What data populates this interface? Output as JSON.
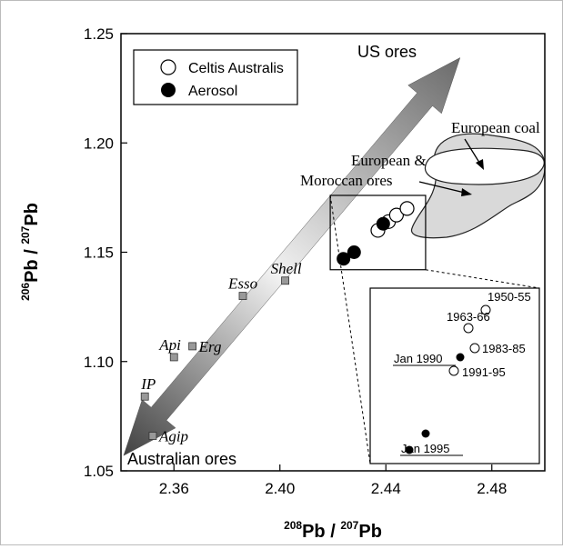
{
  "chart_data": {
    "type": "scatter",
    "xlabel": {
      "sup1": "208",
      "base1": "Pb",
      "sep": " / ",
      "sup2": "207",
      "base2": "Pb"
    },
    "ylabel": {
      "sup1": "206",
      "base1": "Pb",
      "sep": " / ",
      "sup2": "207",
      "base2": "Pb"
    },
    "xlim": [
      2.34,
      2.5
    ],
    "ylim": [
      1.05,
      1.25
    ],
    "xticks": [
      2.36,
      2.4,
      2.44,
      2.48
    ],
    "yticks": [
      1.05,
      1.1,
      1.15,
      1.2,
      1.25
    ],
    "xtick_labels": [
      "2.36",
      "2.40",
      "2.44",
      "2.48"
    ],
    "ytick_labels": [
      "1.05",
      "1.10",
      "1.15",
      "1.20",
      "1.25"
    ],
    "legend": {
      "placement": "top-left",
      "entries": [
        {
          "name": "Celtis Australis",
          "marker": "open-circle"
        },
        {
          "name": "Aerosol",
          "marker": "filled-circle"
        }
      ]
    },
    "series": [
      {
        "name": "Celtis Australis",
        "marker": "open-circle",
        "points": [
          {
            "x": 2.437,
            "y": 1.16
          },
          {
            "x": 2.441,
            "y": 1.164
          },
          {
            "x": 2.444,
            "y": 1.167
          },
          {
            "x": 2.448,
            "y": 1.17
          }
        ]
      },
      {
        "name": "Aerosol",
        "marker": "filled-circle",
        "points": [
          {
            "x": 2.424,
            "y": 1.147
          },
          {
            "x": 2.428,
            "y": 1.15
          },
          {
            "x": 2.439,
            "y": 1.163
          }
        ]
      }
    ],
    "fuel_brands": [
      {
        "label": "IP",
        "x": 2.349,
        "y": 1.084
      },
      {
        "label": "Api",
        "x": 2.36,
        "y": 1.102
      },
      {
        "label": "Erg",
        "x": 2.367,
        "y": 1.107
      },
      {
        "label": "Agip",
        "x": 2.352,
        "y": 1.066
      },
      {
        "label": "Esso",
        "x": 2.386,
        "y": 1.13
      },
      {
        "label": "Shell",
        "x": 2.402,
        "y": 1.137
      }
    ],
    "annotations": {
      "us_ores": "US ores",
      "australian_ores": "Australian ores",
      "european_coal": "European coal",
      "european_moroccan_line1": "European &",
      "european_moroccan_line2": "Moroccan ores"
    },
    "arrow": {
      "from": {
        "x": 2.341,
        "y": 1.057
      },
      "to": {
        "x": 2.468,
        "y": 1.239
      }
    },
    "inset": {
      "source_box": {
        "x": [
          2.419,
          2.455
        ],
        "y": [
          1.142,
          1.176
        ]
      },
      "points": [
        {
          "label": "1950-55",
          "marker": "open-circle"
        },
        {
          "label": "1963-66",
          "marker": "open-circle"
        },
        {
          "label": "1983-85",
          "marker": "open-circle"
        },
        {
          "label": "Jan 1990",
          "marker": "filled-circle"
        },
        {
          "label": "1991-95",
          "marker": "open-circle"
        },
        {
          "label": "Jan 1995",
          "marker": "filled-circle"
        }
      ]
    },
    "grid": false
  }
}
